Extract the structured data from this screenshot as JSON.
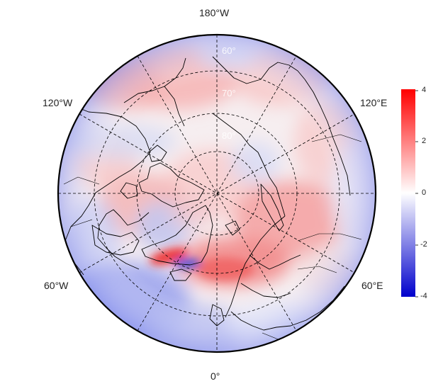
{
  "map": {
    "projection": "north polar stereographic",
    "longitude_labels": {
      "top": "180°W",
      "upper_left": "120°W",
      "upper_right": "120°E",
      "lower_left": "60°W",
      "lower_right": "60°E",
      "bottom": "0°"
    },
    "latitude_labels": [
      "60°",
      "70°",
      "80°"
    ],
    "colorbar": {
      "ticks": [
        "4",
        "2",
        "0",
        "-2",
        "-4"
      ],
      "min": -4,
      "max": 4,
      "colors": {
        "low": "#0000cc",
        "mid": "#ffffff",
        "high": "#ff0000"
      }
    },
    "colors": {
      "border": "#000000",
      "grid": "#000000",
      "coast": "#000000"
    }
  }
}
